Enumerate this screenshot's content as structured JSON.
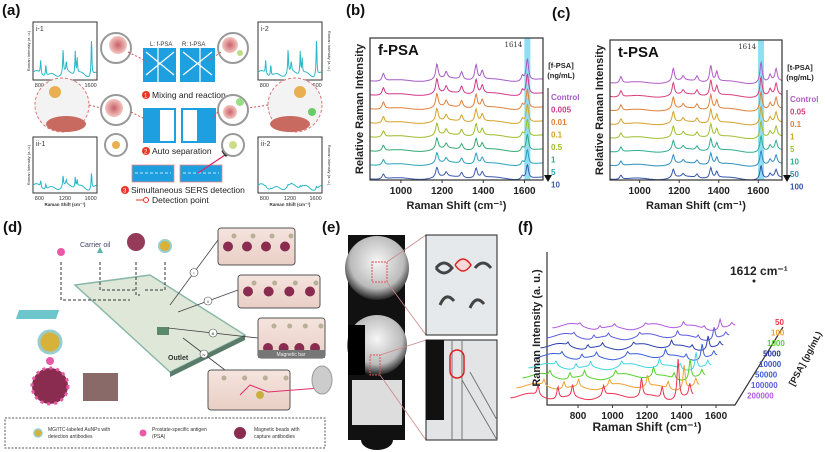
{
  "panels": {
    "a": {
      "label": "(a)",
      "chip_left_label": "L: f-PSA",
      "chip_right_label": "R: t-PSA",
      "step1": "Mixing and reaction",
      "step2": "Auto separation",
      "step3": "Simultaneous  SERS detection",
      "detection_point": "Detection point",
      "step_numbers": [
        "1",
        "2",
        "3"
      ],
      "insets": [
        {
          "id": "i-1",
          "ticks": [
            "800",
            "1200",
            "1600"
          ],
          "ylabel": "Raman Intensity (a. u.)"
        },
        {
          "id": "i-2",
          "ticks": [
            "800",
            "1200",
            "1600"
          ],
          "ylabel": "Raman Intensity (a. u.)"
        },
        {
          "id": "ii-1",
          "ticks": [
            "800",
            "1200",
            "1600"
          ],
          "ylabel": "Raman Intensity (a. u.)",
          "xlabel": "Raman Shift (cm⁻¹)"
        },
        {
          "id": "ii-2",
          "ticks": [
            "800",
            "1200",
            "1600"
          ],
          "ylabel": "Raman Intensity (a. u.)",
          "xlabel": "Raman Shift (cm⁻¹)"
        }
      ],
      "spectrum_color": "#2bb8c8",
      "chip_color": "#1e9fe0"
    },
    "b": {
      "label": "(b)"
    },
    "c": {
      "label": "(c)"
    },
    "d": {
      "label": "(d)",
      "carrier_oil": "Carrier oil",
      "outlet": "Outlet",
      "magnetic_bar": "Magnetic bar",
      "callouts": [
        "i",
        "ii",
        "iii",
        "iv",
        "v"
      ],
      "legend": [
        {
          "text1": "MG/ITC-labeled AuNPs with",
          "text2": "detection antibodies"
        },
        {
          "text1": "Prostate-specific antigen",
          "text2": "(PSA)"
        },
        {
          "text1": "Magnetic beads with",
          "text2": "capture antibodies"
        }
      ]
    },
    "e": {
      "label": "(e)"
    },
    "f": {
      "label": "(f)"
    }
  },
  "chart_data": [
    {
      "panel": "b",
      "type": "line",
      "title": "f-PSA",
      "xlabel": "Raman Shift (cm⁻¹)",
      "ylabel": "Relative Raman Intensity",
      "xlim": [
        850,
        1690
      ],
      "xticks": [
        1000,
        1200,
        1400,
        1600
      ],
      "highlight_band": 1614,
      "highlight_label": "1614",
      "highlight_color": "#5fd0f0",
      "legend_title": [
        "[f-PSA]",
        "(ng/mL)"
      ],
      "legend_placement": "right",
      "peaks": [
        [
          915,
          0.35
        ],
        [
          1175,
          0.7
        ],
        [
          1220,
          0.3
        ],
        [
          1295,
          0.35
        ],
        [
          1365,
          0.7
        ],
        [
          1395,
          0.4
        ],
        [
          1590,
          0.25
        ],
        [
          1614,
          1.0
        ]
      ],
      "series": [
        {
          "name": "Control",
          "color": "#a45cc4",
          "scale": 1.0
        },
        {
          "name": "0.005",
          "color": "#d2388c",
          "scale": 0.95
        },
        {
          "name": "0.01",
          "color": "#e0803a",
          "scale": 0.9
        },
        {
          "name": "0.1",
          "color": "#d3a326",
          "scale": 0.85
        },
        {
          "name": "0.5",
          "color": "#9cbd2b",
          "scale": 0.8
        },
        {
          "name": "1",
          "color": "#37a874",
          "scale": 0.75
        },
        {
          "name": "5",
          "color": "#2aa2b8",
          "scale": 0.7
        },
        {
          "name": "10",
          "color": "#3b5cb0",
          "scale": 0.65
        }
      ]
    },
    {
      "panel": "c",
      "type": "line",
      "title": "t-PSA",
      "xlabel": "Raman Shift (cm⁻¹)",
      "ylabel": "Relative Raman Intensity",
      "xlim": [
        850,
        1720
      ],
      "xticks": [
        1000,
        1200,
        1400,
        1600
      ],
      "highlight_band": 1614,
      "highlight_label": "1614",
      "highlight_color": "#5fd0f0",
      "legend_title": [
        "[t-PSA]",
        "(ng/mL)"
      ],
      "legend_placement": "right",
      "peaks": [
        [
          905,
          0.3
        ],
        [
          1170,
          0.6
        ],
        [
          1220,
          0.2
        ],
        [
          1290,
          0.25
        ],
        [
          1360,
          0.75
        ],
        [
          1390,
          0.45
        ],
        [
          1614,
          0.95
        ],
        [
          1660,
          0.3
        ],
        [
          1690,
          0.55
        ]
      ],
      "series": [
        {
          "name": "Control",
          "color": "#b05cc4",
          "scale": 1.0
        },
        {
          "name": "0.05",
          "color": "#d8407a",
          "scale": 0.95
        },
        {
          "name": "0.1",
          "color": "#e0803a",
          "scale": 0.9
        },
        {
          "name": "1",
          "color": "#d3a22a",
          "scale": 0.85
        },
        {
          "name": "5",
          "color": "#9fbf30",
          "scale": 0.8
        },
        {
          "name": "10",
          "color": "#30ae90",
          "scale": 0.75
        },
        {
          "name": "50",
          "color": "#2f8ec0",
          "scale": 0.7
        },
        {
          "name": "100",
          "color": "#3355aa",
          "scale": 0.65
        }
      ]
    },
    {
      "panel": "f",
      "type": "line",
      "subtype": "waterfall-3d",
      "xlabel": "Raman Shift (cm⁻¹)",
      "ylabel": "Raman Intensity (a. u.)",
      "zlabel": "[PSA] (pg/mL)",
      "xlim": [
        620,
        1710
      ],
      "xticks": [
        800,
        1000,
        1200,
        1400,
        1600
      ],
      "annotation": "1612 cm⁻¹",
      "annotation_x": 1612,
      "peaks": [
        [
          800,
          0.25
        ],
        [
          915,
          0.3
        ],
        [
          1000,
          0.3
        ],
        [
          1180,
          0.25
        ],
        [
          1400,
          0.45
        ],
        [
          1520,
          0.3
        ],
        [
          1612,
          1.0
        ],
        [
          1680,
          0.3
        ]
      ],
      "series": [
        {
          "name": "50",
          "color": "#e8344f",
          "scale": 1.0
        },
        {
          "name": "100",
          "color": "#f0a030",
          "scale": 0.6
        },
        {
          "name": "1000",
          "color": "#55d02a",
          "scale": 0.5
        },
        {
          "name": "5000",
          "color": "#3fd6e0",
          "scale": 0.42
        },
        {
          "name": "10000",
          "color": "#3a5fd8",
          "scale": 0.38
        },
        {
          "name": "50000",
          "color": "#2a3fb0",
          "scale": 0.33
        },
        {
          "name": "100000",
          "color": "#5a5ae0",
          "scale": 0.3
        },
        {
          "name": "200000",
          "color": "#b05ae0",
          "scale": 0.25
        }
      ],
      "legend_label_colors": [
        "#e8344f",
        "#f0a030",
        "#55d02a",
        "#223399",
        "#3355cc",
        "#3a5fd8",
        "#5a5ae0",
        "#b05ae0"
      ]
    }
  ]
}
